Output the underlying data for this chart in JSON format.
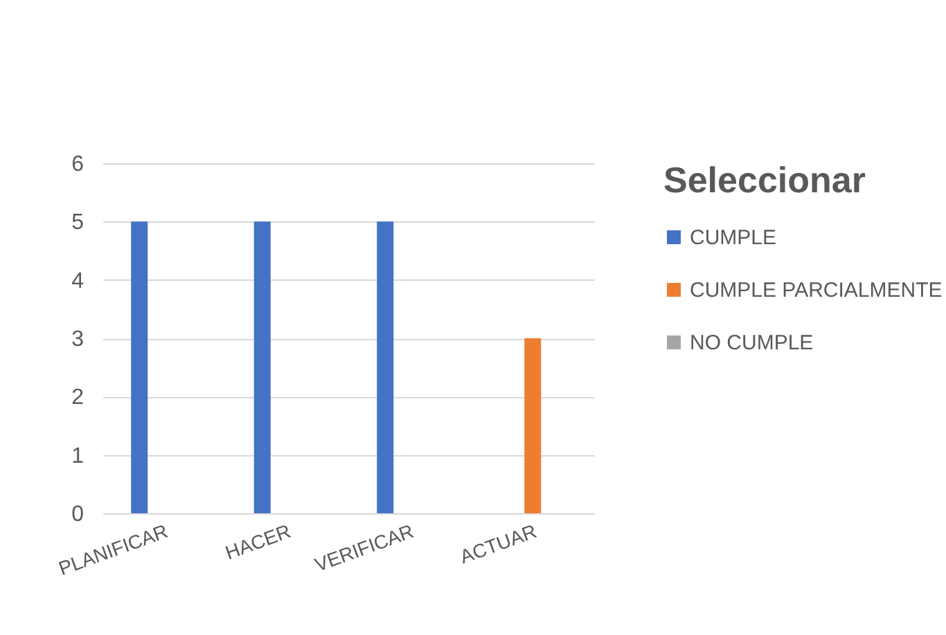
{
  "chart_data": {
    "type": "bar",
    "legend_title": "Seleccionar",
    "categories": [
      "PLANIFICAR",
      "HACER",
      "VERIFICAR",
      "ACTUAR"
    ],
    "series": [
      {
        "name": "CUMPLE",
        "color": "#4472c4",
        "values": [
          5,
          5,
          5,
          null
        ]
      },
      {
        "name": "CUMPLE PARCIALMENTE",
        "color": "#ed7d31",
        "values": [
          null,
          null,
          null,
          3
        ]
      },
      {
        "name": "NO CUMPLE",
        "color": "#a5a5a5",
        "values": [
          null,
          null,
          null,
          null
        ]
      }
    ],
    "ylim": [
      0,
      6
    ],
    "yticks": [
      0,
      1,
      2,
      3,
      4,
      5,
      6
    ],
    "grid": "y",
    "legend": "right"
  }
}
